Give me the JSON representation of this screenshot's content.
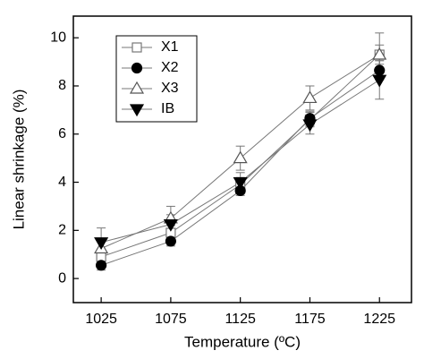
{
  "chart_data": {
    "type": "line",
    "x_label": "Temperature (ºC)",
    "y_label": "Linear shrinkage (%)",
    "x": [
      1025,
      1075,
      1125,
      1175,
      1225
    ],
    "xlim": [
      1005,
      1248
    ],
    "xticks": [
      1025,
      1075,
      1125,
      1175,
      1225
    ],
    "ylim": [
      -1,
      10.9
    ],
    "yticks": [
      0,
      2,
      4,
      6,
      8,
      10
    ],
    "legend": "upper-left",
    "line_color": "#777777",
    "series": [
      {
        "name": "X1",
        "color": "#777777",
        "marker": "square-open",
        "values": [
          0.9,
          1.9,
          3.9,
          6.6,
          9.3
        ],
        "errors": [
          0.3,
          0.3,
          0.3,
          0.3,
          0.4
        ]
      },
      {
        "name": "X2",
        "color": "#000000",
        "marker": "circle",
        "values": [
          0.55,
          1.55,
          3.65,
          6.65,
          8.65
        ],
        "errors": [
          0.2,
          0.2,
          0.2,
          0.3,
          0.4
        ]
      },
      {
        "name": "X3",
        "color": "#555555",
        "marker": "triangle-open",
        "values": [
          1.25,
          2.5,
          5.0,
          7.5,
          9.3
        ],
        "errors": [
          0.4,
          0.5,
          0.5,
          0.5,
          0.9
        ]
      },
      {
        "name": "IB",
        "color": "#000000",
        "marker": "triangle-down",
        "values": [
          1.5,
          2.25,
          4.0,
          6.4,
          8.25
        ],
        "errors": [
          0.6,
          0.4,
          0.4,
          0.4,
          0.8
        ]
      }
    ]
  }
}
